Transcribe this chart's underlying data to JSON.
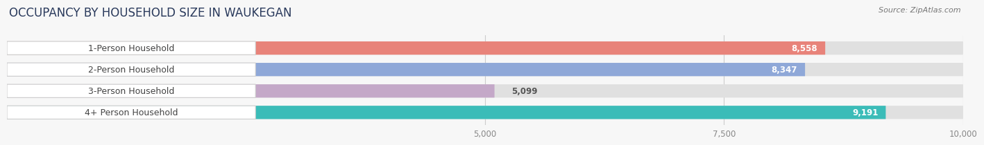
{
  "title": "OCCUPANCY BY HOUSEHOLD SIZE IN WAUKEGAN",
  "source": "Source: ZipAtlas.com",
  "categories": [
    "1-Person Household",
    "2-Person Household",
    "3-Person Household",
    "4+ Person Household"
  ],
  "values": [
    8558,
    8347,
    5099,
    9191
  ],
  "bar_colors": [
    "#E8837A",
    "#8FA8D8",
    "#C4A8C8",
    "#3BBCB8"
  ],
  "value_labels": [
    "8,558",
    "8,347",
    "5,099",
    "9,191"
  ],
  "label_inside": [
    true,
    true,
    false,
    true
  ],
  "xmin": 0,
  "xmax": 10000,
  "xticks": [
    5000,
    7500,
    10000
  ],
  "xtick_labels": [
    "5,000",
    "7,500",
    "10,000"
  ],
  "background_color": "#f7f7f7",
  "bar_bg_color": "#e0e0e0",
  "label_bg_color": "#ffffff",
  "title_fontsize": 12,
  "source_fontsize": 8,
  "label_fontsize": 9,
  "value_fontsize": 8.5,
  "tick_fontsize": 8.5,
  "title_color": "#2a3a5c",
  "label_text_color": "#444444",
  "tick_color": "#888888",
  "grid_color": "#cccccc"
}
